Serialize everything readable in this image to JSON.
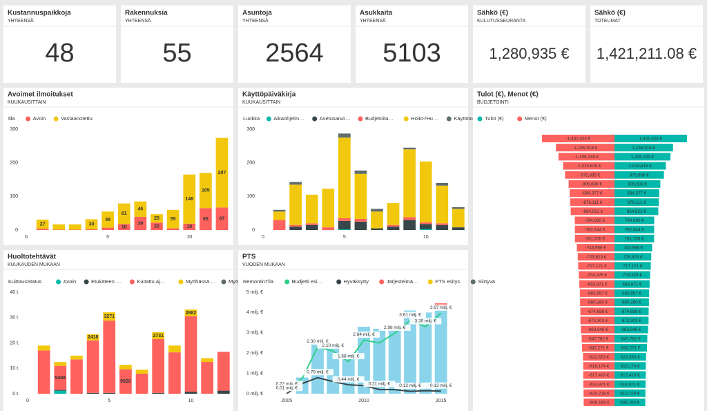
{
  "cards": [
    {
      "title": "Kustannuspaikkoja",
      "subtitle": "YHTEENSÄ",
      "value": 48
    },
    {
      "title": "Rakennuksia",
      "subtitle": "YHTEENSÄ",
      "value": 55
    },
    {
      "title": "Asuntoja",
      "subtitle": "YHTEENSÄ",
      "value": 2564
    },
    {
      "title": "Asukkaita",
      "subtitle": "YHTEENSÄ",
      "value": 5103
    },
    {
      "title": "Sähkö (€)",
      "subtitle": "KULUTUSSEURANTA",
      "value": {
        "value": 1280935,
        "label": "1,280,935 €"
      }
    },
    {
      "title": "Sähkö (€)",
      "subtitle": "TOTEUMAT",
      "value": {
        "value": 1421211.08,
        "label": "1,421,211.08 €"
      }
    }
  ],
  "chart_data": [
    {
      "type": "stacked_bar",
      "title": "Avoimet ilmoitukset",
      "subtitle": "KUUKAUSITTAIN",
      "legend_title": "tila",
      "x": [
        1,
        2,
        3,
        4,
        5,
        6,
        7,
        8,
        9,
        10,
        11,
        12
      ],
      "xlim": [
        0,
        12.7
      ],
      "xticks": [
        0,
        5,
        10
      ],
      "ylim": [
        0,
        300
      ],
      "yticks": [
        0,
        100,
        200,
        300
      ],
      "series": [
        {
          "name": "Avoin",
          "color": "#fd625e",
          "values": [
            4,
            1,
            1,
            2,
            7,
            18,
            39,
            22,
            5,
            19,
            65,
            67
          ],
          "value_labels": [
            null,
            null,
            null,
            null,
            null,
            "18",
            "39",
            "22",
            null,
            "19",
            "65",
            "67"
          ]
        },
        {
          "name": "Vastaanotettu",
          "color": "#f2c80f",
          "values": [
            27,
            16,
            16,
            30,
            48,
            61,
            46,
            25,
            55,
            146,
            105,
            207
          ],
          "value_labels": [
            "27",
            null,
            null,
            "30",
            "48",
            "61",
            "46",
            "25",
            "55",
            "146",
            "105",
            "207"
          ]
        }
      ]
    },
    {
      "type": "stacked_bar",
      "title": "Käyttöpäiväkirja",
      "subtitle": "KUUKAUSITTAIN",
      "legend_title": "Luokka",
      "x": [
        1,
        2,
        3,
        4,
        5,
        6,
        7,
        8,
        9,
        10,
        11,
        12
      ],
      "xlim": [
        0,
        12.6
      ],
      "xticks": [
        0,
        5,
        10
      ],
      "ylim": [
        0,
        300
      ],
      "yticks": [
        0,
        100,
        200,
        300
      ],
      "series": [
        {
          "name": "Aikaohjelm…",
          "color": "#01b8aa",
          "values": [
            0,
            0,
            0,
            0,
            2,
            0,
            0,
            0,
            0,
            3,
            0,
            0
          ]
        },
        {
          "name": "Asetusarvo…",
          "color": "#374649",
          "values": [
            0,
            10,
            15,
            0,
            25,
            25,
            5,
            10,
            30,
            15,
            15,
            8
          ]
        },
        {
          "name": "Budjetoita…",
          "color": "#fd625e",
          "values": [
            30,
            5,
            5,
            8,
            8,
            8,
            0,
            5,
            8,
            5,
            5,
            0
          ]
        },
        {
          "name": "Hoito-/Hu…",
          "color": "#f2c80f",
          "values": [
            25,
            120,
            85,
            115,
            240,
            134,
            50,
            65,
            202,
            181,
            112,
            55
          ]
        },
        {
          "name": "Käyttötoim…",
          "color": "#5f6b6d",
          "values": [
            5,
            8,
            0,
            0,
            12,
            10,
            8,
            0,
            5,
            0,
            8,
            5
          ]
        }
      ]
    },
    {
      "type": "diverging_bar",
      "title": "Tulot (€), Menot (€)",
      "subtitle": "BUDJETOINTI",
      "xlim": [
        -1500000,
        1500000
      ],
      "series": [
        {
          "name": "Tulot (€)",
          "color": "#01b8aa",
          "values": [
            1431424,
            1155916,
            1106139,
            1014615,
            975895,
            905608,
            884377,
            876111,
            864822,
            784660,
            782644,
            781705,
            743986,
            725829,
            717121,
            704325,
            693971,
            683957,
            680260,
            674698,
            673303,
            663646,
            647782,
            642271,
            622653,
            618174,
            617429,
            614971,
            610729,
            608165
          ],
          "value_labels": [
            "1,431,424 €",
            "1,155,916 €",
            "1,106,139 €",
            "1,014,615 €",
            "975,895 €",
            "905,608 €",
            "884,377 €",
            "876,111 €",
            "864,822 €",
            "784,660 €",
            "782,644 €",
            "781,705 €",
            "743,986 €",
            "725,829 €",
            "717,121 €",
            "704,325 €",
            "693,971 €",
            "683,957 €",
            "680,260 €",
            "674,698 €",
            "673,303 €",
            "663,646 €",
            "647,782 €",
            "642,271 €",
            "622,653 €",
            "618,174 €",
            "617,429 €",
            "614,971 €",
            "610,729 €",
            "608,165 €"
          ]
        },
        {
          "name": "Menot (€)",
          "color": "#fd625e",
          "values": [
            -1431424,
            -1155916,
            -1106139,
            -1014615,
            -975895,
            -905608,
            -884377,
            -876111,
            -864822,
            -784660,
            -782644,
            -781705,
            -743986,
            -725829,
            -717121,
            -704325,
            -693971,
            -683957,
            -680260,
            -674698,
            -673303,
            -663646,
            -647782,
            -642271,
            -622653,
            -618174,
            -617429,
            -614971,
            -610729,
            -608165
          ],
          "value_labels": [
            "-1,431,424 €",
            "-1,155,916 €",
            "-1,106,139 €",
            "-1,014,615 €",
            "-975,895 €",
            "-905,608 €",
            "-884,377 €",
            "-876,111 €",
            "-864,822 €",
            "-784,660 €",
            "-782,644 €",
            "-781,705 €",
            "-743,986 €",
            "-725,829 €",
            "-717,121 €",
            "-704,325 €",
            "-693,971 €",
            "-683,957 €",
            "-680,260 €",
            "-674,698 €",
            "-673,303 €",
            "-663,646 €",
            "-647,782 €",
            "-642,271 €",
            "-622,653 €",
            "-618,174 €",
            "-617,429 €",
            "-614,971 €",
            "-610,729 €",
            "-608,165 €"
          ]
        }
      ]
    },
    {
      "type": "stacked_bar",
      "title": "Huoltotehtävät",
      "subtitle": "KUUKAUDEN MUKAAN",
      "legend_title": "KuittausStatus",
      "x": [
        1,
        2,
        3,
        4,
        5,
        6,
        7,
        8,
        9,
        10,
        11,
        12
      ],
      "xlim": [
        0,
        12.6
      ],
      "xticks": [
        0,
        5,
        10
      ],
      "ylim": [
        0,
        40000
      ],
      "yticks": [
        {
          "value": 0,
          "label": "0 t."
        },
        {
          "value": 10000,
          "label": "10 t."
        },
        {
          "value": 20000,
          "label": "20 t."
        },
        {
          "value": 30000,
          "label": "30 t."
        },
        {
          "value": 40000,
          "label": "40 t."
        }
      ],
      "series": [
        {
          "name": "Avoin",
          "color": "#01b8aa",
          "values": [
            0,
            1200,
            0,
            0,
            0,
            0,
            0,
            0,
            0,
            0,
            0,
            0
          ]
        },
        {
          "name": "Etukäteen …",
          "color": "#374649",
          "values": [
            0,
            300,
            0,
            300,
            300,
            0,
            0,
            300,
            0,
            800,
            0,
            1200
          ]
        },
        {
          "name": "Kuitattu aj…",
          "color": "#fd625e",
          "values": [
            17000,
            9488,
            13500,
            20700,
            28500,
            9620,
            7900,
            21200,
            16300,
            29700,
            12500,
            15300
          ],
          "value_labels": [
            null,
            "9488",
            null,
            null,
            null,
            "9620",
            null,
            null,
            null,
            null,
            null,
            null
          ]
        },
        {
          "name": "Myöhässä …",
          "color": "#f2c80f",
          "values": [
            2000,
            1500,
            1500,
            2418,
            3271,
            1800,
            1600,
            2731,
            2700,
            2682,
            1500,
            0
          ],
          "value_labels": [
            null,
            null,
            null,
            "2418",
            "3271",
            null,
            null,
            "2731",
            null,
            "2682",
            null,
            null
          ]
        },
        {
          "name": "Myöhässä, …",
          "color": "#5f6b6d",
          "values": [
            0,
            0,
            0,
            0,
            0,
            0,
            0,
            0,
            0,
            0,
            0,
            0
          ]
        }
      ]
    },
    {
      "type": "combo",
      "title": "PTS",
      "subtitle": "VUODEN MUKAAN",
      "legend_title": "RemontinTila",
      "x": [
        2005,
        2006,
        2007,
        2008,
        2009,
        2010,
        2011,
        2012,
        2013,
        2014,
        2015
      ],
      "xlim": [
        2004,
        2016
      ],
      "xticks": [
        2005,
        2010,
        2015
      ],
      "ylim": [
        0,
        5
      ],
      "yticks": [
        {
          "value": 0,
          "label": "0 milj. €"
        },
        {
          "value": 1,
          "label": "1 milj. €"
        },
        {
          "value": 2,
          "label": "2 milj. €"
        },
        {
          "value": 3,
          "label": "3 milj. €"
        },
        {
          "value": 4,
          "label": "4 milj. €"
        },
        {
          "value": 5,
          "label": "5 milj. €"
        }
      ],
      "series": [
        {
          "color": "#8ad4eb",
          "kind": "bar",
          "values": [
            null,
            0.8,
            2.5,
            2.4,
            2.0,
            3.3,
            3.2,
            3.2,
            4.1,
            4.0,
            4.3
          ]
        },
        {
          "name": "Budjetti esi…",
          "color": "#2fcf8a",
          "kind": "line",
          "values": [
            0.22,
            0.75,
            2.3,
            2.1,
            1.58,
            2.64,
            2.5,
            2.98,
            3.61,
            3.3,
            3.97
          ],
          "value_labels": [
            "0.22 milj. €",
            null,
            "2.30 milj. €",
            "2.10 milj. €",
            "1.58 milj. €",
            "2.64 milj. €",
            null,
            "2.98 milj. €",
            "3.61 milj. €",
            "3.30 milj. €",
            "3.97 milj. €"
          ]
        },
        {
          "name": "Hyväksytty",
          "color": "#374649",
          "kind": "line",
          "values": [
            0.01,
            0.5,
            0.79,
            0.6,
            0.44,
            0.4,
            0.21,
            0.2,
            0.12,
            0.15,
            0.13
          ],
          "value_labels": [
            "0.01 milj. €",
            null,
            "0.79 milj. €",
            null,
            "0.44 milj. €",
            null,
            "0.21 milj. €",
            null,
            "0.12 milj. €",
            null,
            "0.13 milj. €"
          ]
        },
        {
          "name": "Järjestelmä…",
          "color": "#fd625e",
          "kind": "bar",
          "values": [
            null,
            null,
            null,
            null,
            null,
            null,
            null,
            null,
            null,
            null,
            0.15
          ]
        },
        {
          "name": "PTS esitys",
          "color": "#f2c80f",
          "kind": "bar",
          "values": [
            null,
            null,
            null,
            null,
            null,
            null,
            null,
            null,
            null,
            null,
            null
          ]
        },
        {
          "name": "Siirtyvä",
          "color": "#5f6b6d",
          "kind": "bar",
          "values": [
            null,
            null,
            null,
            null,
            null,
            null,
            null,
            null,
            null,
            null,
            null
          ]
        }
      ]
    }
  ]
}
